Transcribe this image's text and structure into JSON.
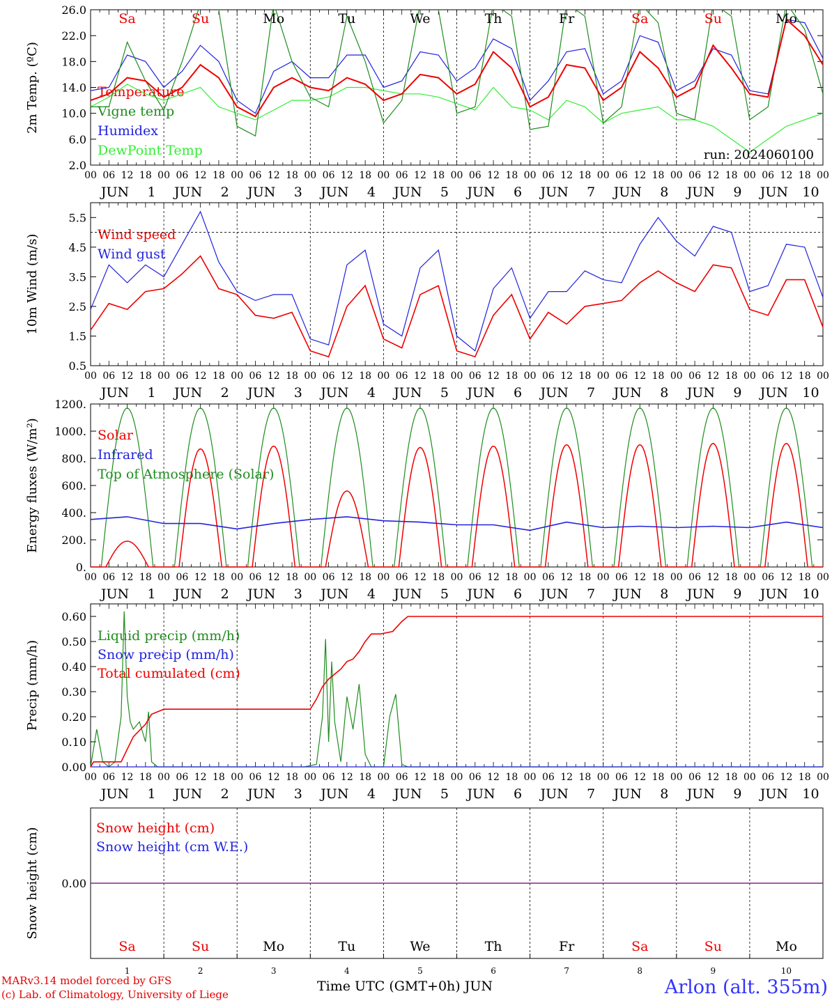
{
  "colors": {
    "red": "#ee0000",
    "green": "#1e8c1e",
    "lightgreen": "#33ee33",
    "blue": "#2222dd",
    "purple": "#882288",
    "weekend": "#ee0000",
    "weekday": "#000000"
  },
  "run_label": "run: 2024060100",
  "hour_ticks": [
    "00",
    "06",
    "12",
    "18"
  ],
  "days": [
    {
      "num": "1",
      "month": "JUN",
      "dow": "Sa",
      "weekend": true
    },
    {
      "num": "2",
      "month": "JUN",
      "dow": "Su",
      "weekend": true
    },
    {
      "num": "3",
      "month": "JUN",
      "dow": "Mo",
      "weekend": false
    },
    {
      "num": "4",
      "month": "JUN",
      "dow": "Tu",
      "weekend": false
    },
    {
      "num": "5",
      "month": "JUN",
      "dow": "We",
      "weekend": false
    },
    {
      "num": "6",
      "month": "JUN",
      "dow": "Th",
      "weekend": false
    },
    {
      "num": "7",
      "month": "JUN",
      "dow": "Fr",
      "weekend": false
    },
    {
      "num": "8",
      "month": "JUN",
      "dow": "Sa",
      "weekend": true
    },
    {
      "num": "9",
      "month": "JUN",
      "dow": "Su",
      "weekend": true
    },
    {
      "num": "10",
      "month": "JUN",
      "dow": "Mo",
      "weekend": false
    }
  ],
  "chart_data": [
    {
      "type": "line",
      "ylabel": "2m Temp. (ºC)",
      "ylim": [
        2,
        26
      ],
      "yticks": [
        "2.0",
        "6.0",
        "10.0",
        "14.0",
        "18.0",
        "22.0",
        "26.0"
      ],
      "x_unit": "hours since 2024-06-01 00 UTC",
      "xlim": [
        0,
        240
      ],
      "series": [
        {
          "name": "Temperature",
          "color": "red",
          "x": [
            0,
            6,
            12,
            18,
            24,
            30,
            36,
            42,
            48,
            54,
            60,
            66,
            72,
            78,
            84,
            90,
            96,
            102,
            108,
            114,
            120,
            126,
            132,
            138,
            144,
            150,
            156,
            162,
            168,
            174,
            180,
            186,
            192,
            198,
            204,
            210,
            216,
            222,
            228,
            234,
            240
          ],
          "y": [
            12,
            13,
            15.5,
            15,
            12.5,
            14,
            17.5,
            15.5,
            11,
            9.5,
            14,
            15.5,
            14,
            13.5,
            15.5,
            14.5,
            12,
            13,
            16,
            15.5,
            13,
            14.5,
            19.5,
            17,
            11,
            12.5,
            17.5,
            17,
            12,
            14,
            19.5,
            17,
            12.5,
            14,
            20.5,
            17,
            13,
            12.5,
            24.5,
            22,
            17.5
          ]
        },
        {
          "name": "Vigne temp",
          "color": "green",
          "x": [
            0,
            6,
            12,
            18,
            24,
            30,
            36,
            42,
            48,
            54,
            60,
            66,
            72,
            78,
            84,
            90,
            96,
            102,
            108,
            114,
            120,
            126,
            132,
            138,
            144,
            150,
            156,
            162,
            168,
            174,
            180,
            186,
            192,
            198,
            204,
            210,
            216,
            222,
            228,
            234,
            240
          ],
          "y": [
            11,
            11,
            21,
            15,
            10.5,
            18,
            27,
            26,
            8,
            6.5,
            27,
            18,
            12.5,
            11,
            25,
            18,
            8.5,
            12,
            27,
            26,
            10,
            11,
            27,
            25,
            7.5,
            8,
            27,
            25,
            8.5,
            11,
            27,
            24,
            10,
            9,
            27,
            25,
            9,
            11,
            27,
            23,
            13
          ]
        },
        {
          "name": "Humidex",
          "color": "blue",
          "x": [
            0,
            6,
            12,
            18,
            24,
            30,
            36,
            42,
            48,
            54,
            60,
            66,
            72,
            78,
            84,
            90,
            96,
            102,
            108,
            114,
            120,
            126,
            132,
            138,
            144,
            150,
            156,
            162,
            168,
            174,
            180,
            186,
            192,
            198,
            204,
            210,
            216,
            222,
            228,
            234,
            240
          ],
          "y": [
            13.5,
            14,
            19,
            18,
            14,
            16.5,
            20.5,
            18,
            12,
            10,
            16.5,
            18,
            15.5,
            15.5,
            19,
            19,
            14,
            15,
            19.5,
            19,
            15,
            17,
            21.5,
            20,
            12,
            15,
            19.5,
            20,
            13,
            15,
            22,
            21,
            13.5,
            15,
            20,
            19,
            13.5,
            13,
            24.5,
            24,
            18.5
          ]
        },
        {
          "name": "DewPoint Temp",
          "color": "lightgreen",
          "x": [
            0,
            6,
            12,
            18,
            24,
            30,
            36,
            42,
            48,
            54,
            60,
            66,
            72,
            78,
            84,
            90,
            96,
            102,
            108,
            114,
            120,
            126,
            132,
            138,
            144,
            150,
            156,
            162,
            168,
            174,
            180,
            186,
            192,
            198,
            204,
            210,
            216,
            222,
            228,
            234,
            240
          ],
          "y": [
            11,
            12.5,
            14.5,
            13,
            12,
            13,
            14,
            11,
            10,
            9,
            10.5,
            12,
            12,
            12.5,
            14,
            14,
            13.5,
            13,
            13,
            12.5,
            11.5,
            10.5,
            14,
            11,
            10.5,
            9,
            12,
            11,
            8.5,
            10,
            10.5,
            11,
            9,
            9,
            8,
            6,
            4,
            6,
            8,
            9,
            10
          ]
        }
      ]
    },
    {
      "type": "line",
      "ylabel": "10m Wind (m/s)",
      "ylim": [
        0.5,
        6
      ],
      "yticks": [
        "0.5",
        "1.5",
        "2.5",
        "3.5",
        "4.5",
        "5.5"
      ],
      "reference_line": 5,
      "xlim": [
        0,
        240
      ],
      "series": [
        {
          "name": "Wind speed",
          "color": "red",
          "x": [
            0,
            6,
            12,
            18,
            24,
            30,
            36,
            42,
            48,
            54,
            60,
            66,
            72,
            78,
            84,
            90,
            96,
            102,
            108,
            114,
            120,
            126,
            132,
            138,
            144,
            150,
            156,
            162,
            168,
            174,
            180,
            186,
            192,
            198,
            204,
            210,
            216,
            222,
            228,
            234,
            240
          ],
          "y": [
            1.7,
            2.6,
            2.4,
            3.0,
            3.1,
            3.6,
            4.2,
            3.1,
            2.9,
            2.2,
            2.1,
            2.3,
            1.0,
            0.8,
            2.5,
            3.2,
            1.4,
            1.1,
            2.9,
            3.2,
            1.0,
            0.8,
            2.2,
            2.9,
            1.4,
            2.3,
            1.9,
            2.5,
            2.6,
            2.7,
            3.3,
            3.7,
            3.3,
            3.0,
            3.9,
            3.8,
            2.4,
            2.2,
            3.4,
            3.4,
            1.8
          ]
        },
        {
          "name": "Wind gust",
          "color": "blue",
          "x": [
            0,
            6,
            12,
            18,
            24,
            30,
            36,
            42,
            48,
            54,
            60,
            66,
            72,
            78,
            84,
            90,
            96,
            102,
            108,
            114,
            120,
            126,
            132,
            138,
            144,
            150,
            156,
            162,
            168,
            174,
            180,
            186,
            192,
            198,
            204,
            210,
            216,
            222,
            228,
            234,
            240
          ],
          "y": [
            2.4,
            3.9,
            3.3,
            3.9,
            3.5,
            4.6,
            5.7,
            4.0,
            3.0,
            2.7,
            2.9,
            2.9,
            1.4,
            1.2,
            3.9,
            4.4,
            1.9,
            1.5,
            3.8,
            4.4,
            1.5,
            1.0,
            3.1,
            3.8,
            2.1,
            3.0,
            3.0,
            3.7,
            3.4,
            3.3,
            4.6,
            5.5,
            4.7,
            4.2,
            5.2,
            5.0,
            3.0,
            3.2,
            4.6,
            4.5,
            2.8
          ]
        }
      ]
    },
    {
      "type": "line",
      "ylabel": "Energy fluxes (W/m²)",
      "ylim": [
        0,
        1200
      ],
      "yticks": [
        "0.",
        "200.",
        "400.",
        "600.",
        "800.",
        "1000.",
        "1200."
      ],
      "xlim": [
        0,
        240
      ],
      "series": [
        {
          "name": "Solar",
          "color": "red",
          "daily_peak": [
            190,
            870,
            890,
            560,
            880,
            890,
            900,
            900,
            910,
            910
          ]
        },
        {
          "name": "Infrared",
          "color": "blue",
          "x": [
            0,
            12,
            24,
            36,
            48,
            60,
            72,
            84,
            96,
            108,
            120,
            132,
            144,
            156,
            168,
            180,
            192,
            204,
            216,
            228,
            240
          ],
          "y": [
            350,
            370,
            320,
            320,
            280,
            320,
            350,
            370,
            340,
            330,
            310,
            310,
            270,
            330,
            290,
            300,
            290,
            300,
            290,
            330,
            290
          ]
        },
        {
          "name": "Top of Atmosphere (Solar)",
          "color": "green",
          "daily_peak": [
            1170,
            1170,
            1170,
            1170,
            1170,
            1170,
            1170,
            1170,
            1170,
            1170
          ]
        }
      ]
    },
    {
      "type": "line",
      "ylabel": "Precip (mm/h)",
      "ylim": [
        0,
        0.65
      ],
      "yticks": [
        "0.00",
        "0.10",
        "0.20",
        "0.30",
        "0.40",
        "0.50",
        "0.60"
      ],
      "xlim": [
        0,
        240
      ],
      "series": [
        {
          "name": "Liquid precip (mm/h)",
          "color": "green",
          "x": [
            0,
            2,
            4,
            6,
            8,
            10,
            11,
            12,
            13,
            14,
            16,
            18,
            19,
            20,
            22,
            24,
            70,
            74,
            76,
            77,
            78,
            79,
            80,
            82,
            84,
            86,
            88,
            90,
            92,
            94,
            96,
            98,
            100,
            102,
            104,
            106,
            240
          ],
          "y": [
            0,
            0.15,
            0.02,
            0,
            0.02,
            0.2,
            0.62,
            0.28,
            0.18,
            0.15,
            0.18,
            0.1,
            0.22,
            0.02,
            0,
            0,
            0,
            0.01,
            0.2,
            0.51,
            0.1,
            0.42,
            0.18,
            0.02,
            0.28,
            0.15,
            0.33,
            0.05,
            0,
            0,
            0,
            0.2,
            0.29,
            0.01,
            0,
            0,
            0
          ]
        },
        {
          "name": "Snow precip (mm/h)",
          "color": "blue",
          "x": [
            0,
            240
          ],
          "y": [
            0,
            0
          ]
        },
        {
          "name": "Total cumulated (cm)",
          "color": "red",
          "x": [
            0,
            1,
            10,
            14,
            18,
            20,
            24,
            48,
            70,
            72,
            74,
            76,
            78,
            82,
            84,
            86,
            88,
            90,
            92,
            95,
            99,
            102,
            104,
            240
          ],
          "y": [
            0,
            0.02,
            0.02,
            0.12,
            0.17,
            0.21,
            0.23,
            0.23,
            0.23,
            0.23,
            0.27,
            0.32,
            0.35,
            0.39,
            0.42,
            0.43,
            0.46,
            0.5,
            0.53,
            0.53,
            0.54,
            0.58,
            0.6,
            0.6
          ]
        }
      ]
    },
    {
      "type": "line",
      "ylabel": "Snow height (cm)",
      "yticks": [
        "0.00"
      ],
      "xlim": [
        0,
        240
      ],
      "series": [
        {
          "name": "Snow height (cm)",
          "color": "red",
          "x": [
            0,
            240
          ],
          "y": [
            0,
            0
          ]
        },
        {
          "name": "Snow height (cm W.E.)",
          "color": "blue",
          "x": [
            0,
            240
          ],
          "y": [
            0,
            0
          ]
        }
      ]
    }
  ],
  "footer": {
    "credit1": "MARv3.14 model forced by GFS",
    "credit2": "(c) Lab. of Climatology, University of Liege",
    "xtitle": "Time UTC (GMT+0h) JUN",
    "station": "Arlon (alt. 355m)"
  }
}
